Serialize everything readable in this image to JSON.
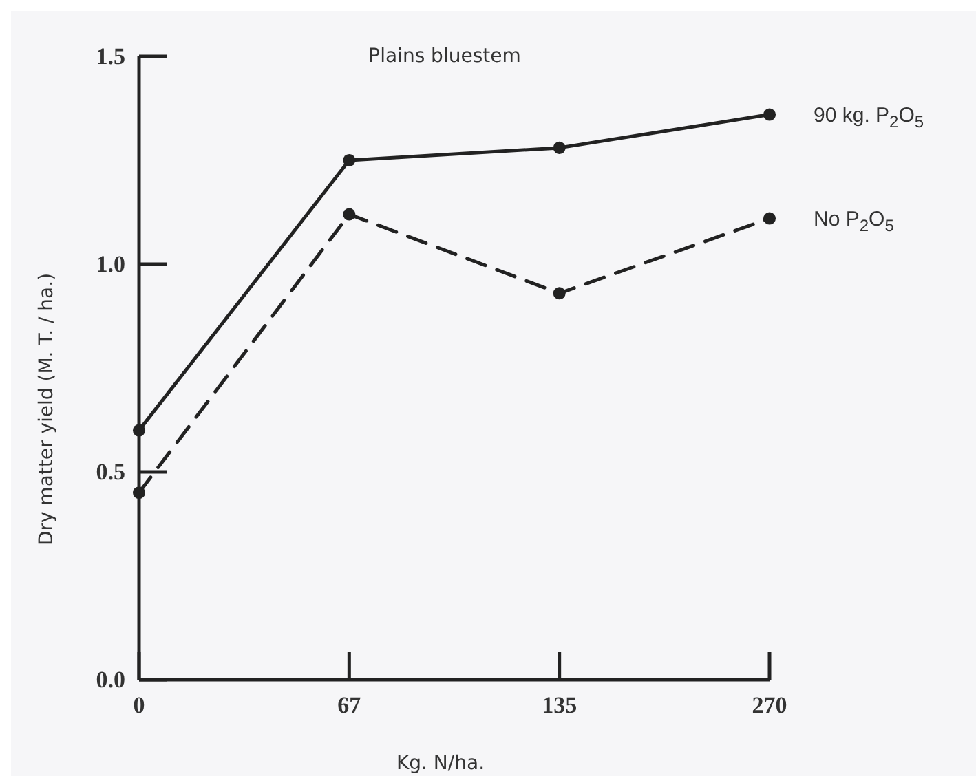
{
  "chart_data": {
    "type": "line",
    "title": "Plains bluestem",
    "xlabel": "Kg. N/ha.",
    "ylabel": "Dry matter yield (M. T. / ha.)",
    "categories": [
      "0",
      "67",
      "135",
      "270"
    ],
    "ylim": [
      0,
      1.5
    ],
    "yticks": [
      {
        "value": 0,
        "label": "0.0"
      },
      {
        "value": 0.5,
        "label": "0.5"
      },
      {
        "value": 1,
        "label": "1.0"
      },
      {
        "value": 1.5,
        "label": "1.5"
      }
    ],
    "marker": "circle",
    "legend": "right",
    "grid": false,
    "series": [
      {
        "name": "90 kg. P$_{2}$O$_{5}$",
        "color": "#222222",
        "line_style": "solid",
        "values": [
          0.6,
          1.25,
          1.28,
          1.36
        ]
      },
      {
        "name": "No P$_{2}$O$_{5}$",
        "color": "#222222",
        "line_style": "dashed",
        "values": [
          0.45,
          1.12,
          0.93,
          1.11
        ]
      }
    ]
  }
}
